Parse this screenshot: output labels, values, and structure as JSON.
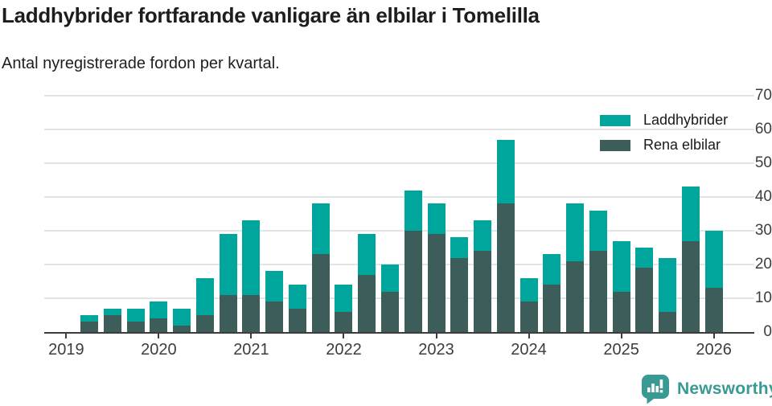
{
  "header": {
    "title": "Laddhybrider fortfarande vanligare än elbilar i Tomelilla",
    "subtitle": "Antal nyregistrerade fordon per kvartal."
  },
  "legend": {
    "items": [
      {
        "label": "Laddhybrider",
        "color": "#00a59b"
      },
      {
        "label": "Rena elbilar",
        "color": "#3c5d59"
      }
    ]
  },
  "footer": {
    "brand": "Newsworthy",
    "brand_color": "#399a93",
    "logo_icon": "bar-chart-speech-bubble-icon"
  },
  "chart_data": {
    "type": "bar",
    "stacked": true,
    "title": "Laddhybrider fortfarande vanligare än elbilar i Tomelilla",
    "subtitle": "Antal nyregistrerade fordon per kvartal.",
    "x": [
      "2019 Q1",
      "2019 Q2",
      "2019 Q3",
      "2019 Q4",
      "2020 Q1",
      "2020 Q2",
      "2020 Q3",
      "2020 Q4",
      "2021 Q1",
      "2021 Q2",
      "2021 Q3",
      "2021 Q4",
      "2022 Q1",
      "2022 Q2",
      "2022 Q3",
      "2022 Q4",
      "2023 Q1",
      "2023 Q2",
      "2023 Q3",
      "2023 Q4",
      "2024 Q1",
      "2024 Q2",
      "2024 Q3",
      "2024 Q4",
      "2025 Q1",
      "2025 Q2",
      "2025 Q3",
      "2025 Q4",
      "2026 Q1"
    ],
    "series": [
      {
        "name": "Rena elbilar",
        "color": "#3c5d59",
        "values": [
          0,
          3,
          5,
          3,
          4,
          2,
          5,
          11,
          11,
          9,
          7,
          23,
          6,
          17,
          12,
          30,
          29,
          22,
          24,
          38,
          9,
          14,
          21,
          24,
          12,
          19,
          6,
          27,
          13
        ]
      },
      {
        "name": "Laddhybrider",
        "color": "#00a59b",
        "values": [
          0,
          2,
          2,
          4,
          5,
          5,
          11,
          18,
          22,
          9,
          7,
          15,
          8,
          12,
          8,
          12,
          9,
          6,
          9,
          19,
          7,
          9,
          17,
          12,
          15,
          6,
          16,
          16,
          17
        ]
      }
    ],
    "totals": [
      0,
      5,
      7,
      7,
      9,
      7,
      16,
      29,
      33,
      18,
      14,
      38,
      14,
      29,
      20,
      42,
      38,
      28,
      33,
      57,
      16,
      23,
      38,
      36,
      27,
      25,
      22,
      43,
      30
    ],
    "ylim": [
      0,
      70
    ],
    "yticks": [
      0,
      10,
      20,
      30,
      40,
      50,
      60,
      70
    ],
    "xticks": [
      {
        "label": "2019",
        "slot": 0
      },
      {
        "label": "2020",
        "slot": 4
      },
      {
        "label": "2021",
        "slot": 8
      },
      {
        "label": "2022",
        "slot": 12
      },
      {
        "label": "2023",
        "slot": 16
      },
      {
        "label": "2024",
        "slot": 20
      },
      {
        "label": "2025",
        "slot": 24
      },
      {
        "label": "2026",
        "slot": 28
      }
    ],
    "grid": "horizontal",
    "legend_position": "top-right"
  }
}
